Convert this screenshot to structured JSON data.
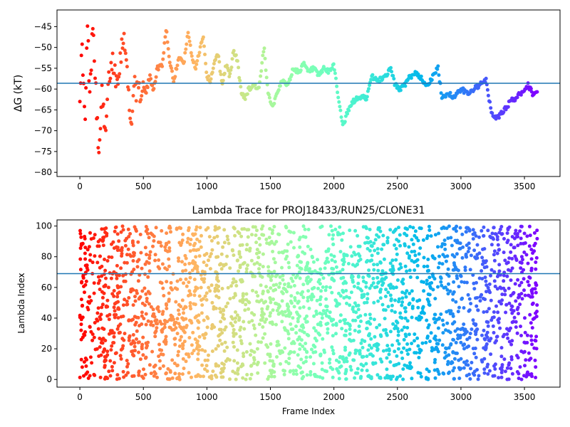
{
  "chart_data": [
    {
      "type": "scatter",
      "title": "",
      "xlabel": "",
      "ylabel": "ΔG (kT)",
      "xlim": [
        -180,
        3780
      ],
      "ylim": [
        -81,
        -41
      ],
      "xticks": [
        0,
        500,
        1000,
        1500,
        2000,
        2500,
        3000,
        3500
      ],
      "yticks": [
        -80,
        -75,
        -70,
        -65,
        -60,
        -55,
        -50,
        -45
      ],
      "hline": -58.6,
      "colormap": "rainbow",
      "color_direction": "frame index increases from red to violet",
      "grid": false,
      "legend": "none",
      "trace_keypoints": [
        [
          0,
          -60
        ],
        [
          20,
          -50
        ],
        [
          40,
          -70
        ],
        [
          60,
          -45
        ],
        [
          80,
          -63
        ],
        [
          100,
          -42
        ],
        [
          120,
          -55
        ],
        [
          150,
          -78
        ],
        [
          170,
          -60
        ],
        [
          200,
          -72
        ],
        [
          230,
          -57
        ],
        [
          260,
          -53
        ],
        [
          290,
          -58
        ],
        [
          320,
          -52
        ],
        [
          350,
          -46
        ],
        [
          380,
          -60
        ],
        [
          400,
          -69
        ],
        [
          430,
          -58
        ],
        [
          460,
          -62
        ],
        [
          490,
          -59
        ],
        [
          520,
          -61
        ],
        [
          550,
          -57
        ],
        [
          580,
          -60
        ],
        [
          610,
          -55
        ],
        [
          650,
          -54
        ],
        [
          680,
          -45
        ],
        [
          700,
          -52
        ],
        [
          740,
          -58
        ],
        [
          780,
          -52
        ],
        [
          820,
          -54
        ],
        [
          850,
          -46
        ],
        [
          880,
          -52
        ],
        [
          910,
          -55
        ],
        [
          940,
          -51
        ],
        [
          970,
          -47
        ],
        [
          1000,
          -57
        ],
        [
          1030,
          -58
        ],
        [
          1060,
          -53
        ],
        [
          1090,
          -52
        ],
        [
          1120,
          -59
        ],
        [
          1150,
          -54
        ],
        [
          1180,
          -57
        ],
        [
          1210,
          -51
        ],
        [
          1240,
          -53
        ],
        [
          1270,
          -61
        ],
        [
          1300,
          -62
        ],
        [
          1330,
          -60
        ],
        [
          1370,
          -59
        ],
        [
          1410,
          -60
        ],
        [
          1450,
          -50
        ],
        [
          1480,
          -61
        ],
        [
          1520,
          -64
        ],
        [
          1560,
          -60
        ],
        [
          1600,
          -58
        ],
        [
          1640,
          -59
        ],
        [
          1680,
          -55
        ],
        [
          1720,
          -56
        ],
        [
          1760,
          -54
        ],
        [
          1800,
          -56
        ],
        [
          1840,
          -55
        ],
        [
          1880,
          -57
        ],
        [
          1920,
          -55
        ],
        [
          1960,
          -56
        ],
        [
          2000,
          -54
        ],
        [
          2030,
          -61
        ],
        [
          2060,
          -67
        ],
        [
          2080,
          -69
        ],
        [
          2100,
          -66
        ],
        [
          2150,
          -63
        ],
        [
          2200,
          -62
        ],
        [
          2260,
          -62
        ],
        [
          2300,
          -57
        ],
        [
          2350,
          -58
        ],
        [
          2400,
          -57
        ],
        [
          2450,
          -55
        ],
        [
          2480,
          -59
        ],
        [
          2520,
          -60
        ],
        [
          2560,
          -59
        ],
        [
          2600,
          -57
        ],
        [
          2650,
          -56
        ],
        [
          2700,
          -58
        ],
        [
          2740,
          -59
        ],
        [
          2780,
          -57
        ],
        [
          2820,
          -55
        ],
        [
          2850,
          -62
        ],
        [
          2900,
          -61
        ],
        [
          2950,
          -62
        ],
        [
          3000,
          -60
        ],
        [
          3050,
          -61
        ],
        [
          3100,
          -60
        ],
        [
          3150,
          -59
        ],
        [
          3200,
          -58
        ],
        [
          3240,
          -66
        ],
        [
          3290,
          -67
        ],
        [
          3340,
          -65
        ],
        [
          3390,
          -63
        ],
        [
          3440,
          -62
        ],
        [
          3500,
          -60
        ],
        [
          3530,
          -59
        ],
        [
          3560,
          -61
        ],
        [
          3600,
          -61
        ]
      ]
    },
    {
      "type": "scatter",
      "title": "Lambda Trace for PROJ18433/RUN25/CLONE31",
      "xlabel": "Frame Index",
      "ylabel": "Lambda Index",
      "xlim": [
        -180,
        3780
      ],
      "ylim": [
        -5,
        104
      ],
      "xticks": [
        0,
        500,
        1000,
        1500,
        2000,
        2500,
        3000,
        3500
      ],
      "yticks": [
        0,
        20,
        40,
        60,
        80,
        100
      ],
      "hline": 69,
      "colormap": "rainbow",
      "color_direction": "frame index increases from red to violet",
      "grid": false,
      "legend": "none",
      "value_range": [
        0,
        100
      ],
      "frame_range": [
        0,
        3600
      ],
      "note_on_density": "dense vertical bands of points spanning lambda 0–100 across all frames"
    }
  ]
}
